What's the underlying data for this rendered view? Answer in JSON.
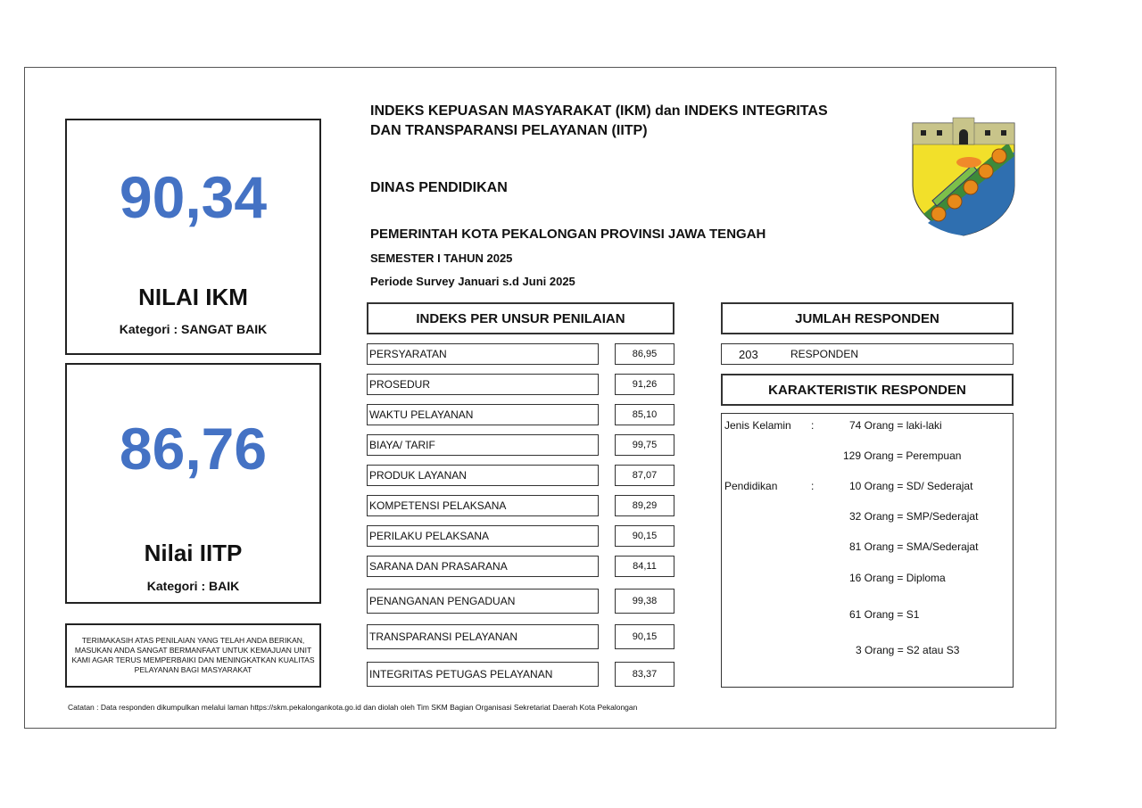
{
  "header": {
    "title_line1": "INDEKS KEPUASAN MASYARAKAT (IKM) dan INDEKS INTEGRITAS",
    "title_line2": "DAN TRANSPARANSI PELAYANAN (IITP)",
    "agency": "DINAS PENDIDIKAN",
    "government": "PEMERINTAH KOTA PEKALONGAN PROVINSI JAWA TENGAH",
    "semester": "SEMESTER I TAHUN 2025",
    "period": "Periode Survey Januari s.d Juni 2025"
  },
  "ikm": {
    "value": "90,34",
    "label": "NILAI IKM",
    "category": "Kategori : SANGAT BAIK"
  },
  "iitp": {
    "value": "86,76",
    "label": "Nilai IITP",
    "category": "Kategori : BAIK"
  },
  "message": "TERIMAKASIH ATAS PENILAIAN YANG TELAH ANDA BERIKAN, MASUKAN ANDA SANGAT BERMANFAAT UNTUK KEMAJUAN UNIT KAMI AGAR TERUS MEMPERBAIKI DAN MENINGKATKAN KUALITAS PELAYANAN BAGI MASYARAKAT",
  "unsur": {
    "title": "INDEKS PER UNSUR PENILAIAN",
    "items": [
      {
        "label": "PERSYARATAN",
        "value": "86,95"
      },
      {
        "label": "PROSEDUR",
        "value": "91,26"
      },
      {
        "label": "WAKTU PELAYANAN",
        "value": "85,10"
      },
      {
        "label": "BIAYA/ TARIF",
        "value": "99,75"
      },
      {
        "label": "PRODUK LAYANAN",
        "value": "87,07"
      },
      {
        "label": "KOMPETENSI PELAKSANA",
        "value": "89,29"
      },
      {
        "label": "PERILAKU PELAKSANA",
        "value": "90,15"
      },
      {
        "label": "SARANA DAN PRASARANA",
        "value": "84,11"
      },
      {
        "label": "PENANGANAN PENGADUAN",
        "value": "99,38"
      },
      {
        "label": "TRANSPARANSI PELAYANAN",
        "value": "90,15"
      },
      {
        "label": "INTEGRITAS PETUGAS PELAYANAN",
        "value": "83,37"
      }
    ]
  },
  "responden": {
    "title": "JUMLAH RESPONDEN",
    "count": "203",
    "unit": "RESPONDEN"
  },
  "karakteristik": {
    "title": "KARAKTERISTIK RESPONDEN",
    "gender_label": "Jenis Kelamin",
    "education_label": "Pendidikan",
    "colon": ":",
    "rows": [
      "74 Orang = laki-laki",
      "129 Orang = Perempuan",
      "10 Orang = SD/ Sederajat",
      "32 Orang = SMP/Sederajat",
      "81 Orang = SMA/Sederajat",
      "16 Orang = Diploma",
      "61 Orang = S1",
      "3 Orang = S2 atau S3"
    ]
  },
  "note": "Catatan : Data responden dikumpulkan melalui laman https://skm.pekalongankota.go.id dan diolah oleh Tim SKM Bagian Organisasi Sekretariat Daerah Kota Pekalongan",
  "logo": {
    "name": "coat-of-arms-kota-pekalongan"
  }
}
